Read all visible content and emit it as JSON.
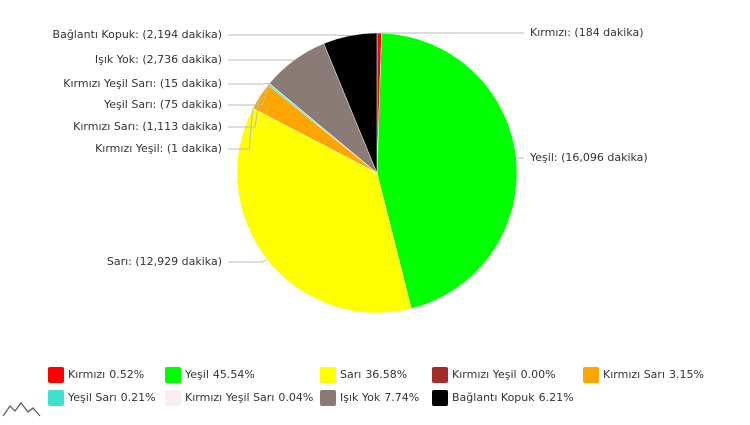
{
  "chart_data": {
    "type": "pie",
    "categories": [
      "Kırmızı",
      "Yeşil",
      "Sarı",
      "Kırmızı Yeşil",
      "Kırmızı Sarı",
      "Yeşil Sarı",
      "Kırmızı Yeşil Sarı",
      "Işık Yok",
      "Bağlantı Kopuk"
    ],
    "values": [
      184,
      16096,
      12929,
      1,
      1113,
      75,
      15,
      2736,
      2194
    ],
    "value_labels": [
      "Kırmızı: (184 dakika)",
      "Yeşil: (16,096 dakika)",
      "Sarı: (12,929 dakika)",
      "Kırmızı Yeşil: (1 dakika)",
      "Kırmızı Sarı: (1,113 dakika)",
      "Yeşil Sarı: (75 dakika)",
      "Kırmızı Yeşil Sarı: (15 dakika)",
      "Işık Yok: (2,736 dakika)",
      "Bağlantı Kopuk: (2,194 dakika)"
    ],
    "percentages": [
      {
        "value": 0.52,
        "label": "0.52%"
      },
      {
        "value": 45.54,
        "label": "45.54%"
      },
      {
        "value": 36.58,
        "label": "36.58%"
      },
      {
        "value": 0.0,
        "label": "0.00%"
      },
      {
        "value": 3.15,
        "label": "3.15%"
      },
      {
        "value": 0.21,
        "label": "0.21%"
      },
      {
        "value": 0.04,
        "label": "0.04%"
      },
      {
        "value": 7.74,
        "label": "7.74%"
      },
      {
        "value": 6.21,
        "label": "6.21%"
      }
    ],
    "colors": [
      "#ff0000",
      "#00ff00",
      "#ffff00",
      "#a52a2a",
      "#ffa500",
      "#40e0d0",
      "#fbeeee",
      "#8b7b77",
      "#000000"
    ]
  }
}
